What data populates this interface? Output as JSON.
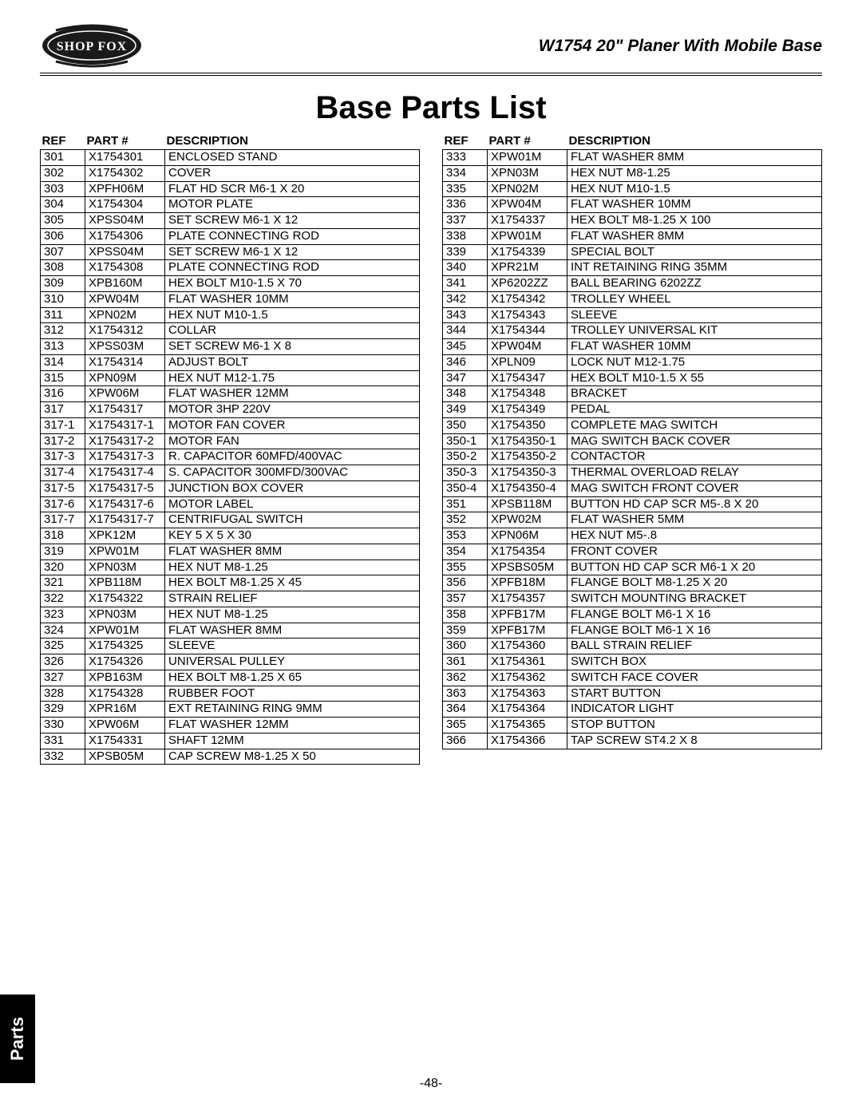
{
  "sideTab": "Parts",
  "productTitle": "W1754 20\" Planer With Mobile Base",
  "pageTitle": "Base Parts List",
  "pageNumber": "-48-",
  "columns": [
    "REF",
    "PART #",
    "DESCRIPTION"
  ],
  "leftRows": [
    [
      "301",
      "X1754301",
      "ENCLOSED STAND"
    ],
    [
      "302",
      "X1754302",
      "COVER"
    ],
    [
      "303",
      "XPFH06M",
      "FLAT HD SCR M6-1 X 20"
    ],
    [
      "304",
      "X1754304",
      "MOTOR PLATE"
    ],
    [
      "305",
      "XPSS04M",
      "SET SCREW M6-1 X 12"
    ],
    [
      "306",
      "X1754306",
      "PLATE CONNECTING ROD"
    ],
    [
      "307",
      "XPSS04M",
      "SET SCREW M6-1 X 12"
    ],
    [
      "308",
      "X1754308",
      "PLATE CONNECTING ROD"
    ],
    [
      "309",
      "XPB160M",
      "HEX BOLT M10-1.5 X 70"
    ],
    [
      "310",
      "XPW04M",
      "FLAT WASHER 10MM"
    ],
    [
      "311",
      "XPN02M",
      "HEX NUT M10-1.5"
    ],
    [
      "312",
      "X1754312",
      "COLLAR"
    ],
    [
      "313",
      "XPSS03M",
      "SET SCREW M6-1 X 8"
    ],
    [
      "314",
      "X1754314",
      "ADJUST BOLT"
    ],
    [
      "315",
      "XPN09M",
      "HEX NUT M12-1.75"
    ],
    [
      "316",
      "XPW06M",
      "FLAT WASHER 12MM"
    ],
    [
      "317",
      "X1754317",
      "MOTOR 3HP 220V"
    ],
    [
      "317-1",
      "X1754317-1",
      "MOTOR FAN COVER"
    ],
    [
      "317-2",
      "X1754317-2",
      "MOTOR FAN"
    ],
    [
      "317-3",
      "X1754317-3",
      "R. CAPACITOR 60MFD/400VAC"
    ],
    [
      "317-4",
      "X1754317-4",
      "S. CAPACITOR 300MFD/300VAC"
    ],
    [
      "317-5",
      "X1754317-5",
      "JUNCTION BOX COVER"
    ],
    [
      "317-6",
      "X1754317-6",
      "MOTOR LABEL"
    ],
    [
      "317-7",
      "X1754317-7",
      "CENTRIFUGAL SWITCH"
    ],
    [
      "318",
      "XPK12M",
      "KEY 5 X 5 X 30"
    ],
    [
      "319",
      "XPW01M",
      "FLAT WASHER 8MM"
    ],
    [
      "320",
      "XPN03M",
      "HEX NUT M8-1.25"
    ],
    [
      "321",
      "XPB118M",
      "HEX BOLT M8-1.25 X 45"
    ],
    [
      "322",
      "X1754322",
      "STRAIN RELIEF"
    ],
    [
      "323",
      "XPN03M",
      "HEX NUT M8-1.25"
    ],
    [
      "324",
      "XPW01M",
      "FLAT WASHER 8MM"
    ],
    [
      "325",
      "X1754325",
      "SLEEVE"
    ],
    [
      "326",
      "X1754326",
      "UNIVERSAL PULLEY"
    ],
    [
      "327",
      "XPB163M",
      "HEX BOLT M8-1.25 X 65"
    ],
    [
      "328",
      "X1754328",
      "RUBBER FOOT"
    ],
    [
      "329",
      "XPR16M",
      "EXT RETAINING RING 9MM"
    ],
    [
      "330",
      "XPW06M",
      "FLAT WASHER 12MM"
    ],
    [
      "331",
      "X1754331",
      "SHAFT 12MM"
    ],
    [
      "332",
      "XPSB05M",
      "CAP SCREW M8-1.25 X 50"
    ]
  ],
  "rightRows": [
    [
      "333",
      "XPW01M",
      "FLAT WASHER 8MM"
    ],
    [
      "334",
      "XPN03M",
      "HEX NUT M8-1.25"
    ],
    [
      "335",
      "XPN02M",
      "HEX NUT M10-1.5"
    ],
    [
      "336",
      "XPW04M",
      "FLAT WASHER 10MM"
    ],
    [
      "337",
      "X1754337",
      "HEX BOLT M8-1.25 X 100"
    ],
    [
      "338",
      "XPW01M",
      "FLAT WASHER 8MM"
    ],
    [
      "339",
      "X1754339",
      "SPECIAL BOLT"
    ],
    [
      "340",
      "XPR21M",
      "INT RETAINING RING 35MM"
    ],
    [
      "341",
      "XP6202ZZ",
      "BALL BEARING 6202ZZ"
    ],
    [
      "342",
      "X1754342",
      "TROLLEY WHEEL"
    ],
    [
      "343",
      "X1754343",
      "SLEEVE"
    ],
    [
      "344",
      "X1754344",
      "TROLLEY UNIVERSAL KIT"
    ],
    [
      "345",
      "XPW04M",
      "FLAT WASHER 10MM"
    ],
    [
      "346",
      "XPLN09",
      "LOCK NUT M12-1.75"
    ],
    [
      "347",
      "X1754347",
      "HEX BOLT M10-1.5 X 55"
    ],
    [
      "348",
      "X1754348",
      "BRACKET"
    ],
    [
      "349",
      "X1754349",
      "PEDAL"
    ],
    [
      "350",
      "X1754350",
      "COMPLETE MAG SWITCH"
    ],
    [
      "350-1",
      "X1754350-1",
      "MAG SWITCH BACK COVER"
    ],
    [
      "350-2",
      "X1754350-2",
      "CONTACTOR"
    ],
    [
      "350-3",
      "X1754350-3",
      "THERMAL OVERLOAD RELAY"
    ],
    [
      "350-4",
      "X1754350-4",
      "MAG SWITCH FRONT COVER"
    ],
    [
      "351",
      "XPSB118M",
      "BUTTON HD CAP SCR M5-.8 X 20"
    ],
    [
      "352",
      "XPW02M",
      "FLAT WASHER 5MM"
    ],
    [
      "353",
      "XPN06M",
      "HEX NUT M5-.8"
    ],
    [
      "354",
      "X1754354",
      "FRONT COVER"
    ],
    [
      "355",
      "XPSBS05M",
      "BUTTON HD CAP SCR M6-1 X 20"
    ],
    [
      "356",
      "XPFB18M",
      "FLANGE BOLT M8-1.25 X 20"
    ],
    [
      "357",
      "X1754357",
      "SWITCH MOUNTING BRACKET"
    ],
    [
      "358",
      "XPFB17M",
      "FLANGE BOLT M6-1 X 16"
    ],
    [
      "359",
      "XPFB17M",
      "FLANGE BOLT M6-1 X 16"
    ],
    [
      "360",
      "X1754360",
      "BALL STRAIN RELIEF"
    ],
    [
      "361",
      "X1754361",
      "SWITCH BOX"
    ],
    [
      "362",
      "X1754362",
      "SWITCH FACE COVER"
    ],
    [
      "363",
      "X1754363",
      "START BUTTON"
    ],
    [
      "364",
      "X1754364",
      "INDICATOR LIGHT"
    ],
    [
      "365",
      "X1754365",
      "STOP BUTTON"
    ],
    [
      "366",
      "X1754366",
      "TAP SCREW ST4.2 X 8"
    ]
  ]
}
